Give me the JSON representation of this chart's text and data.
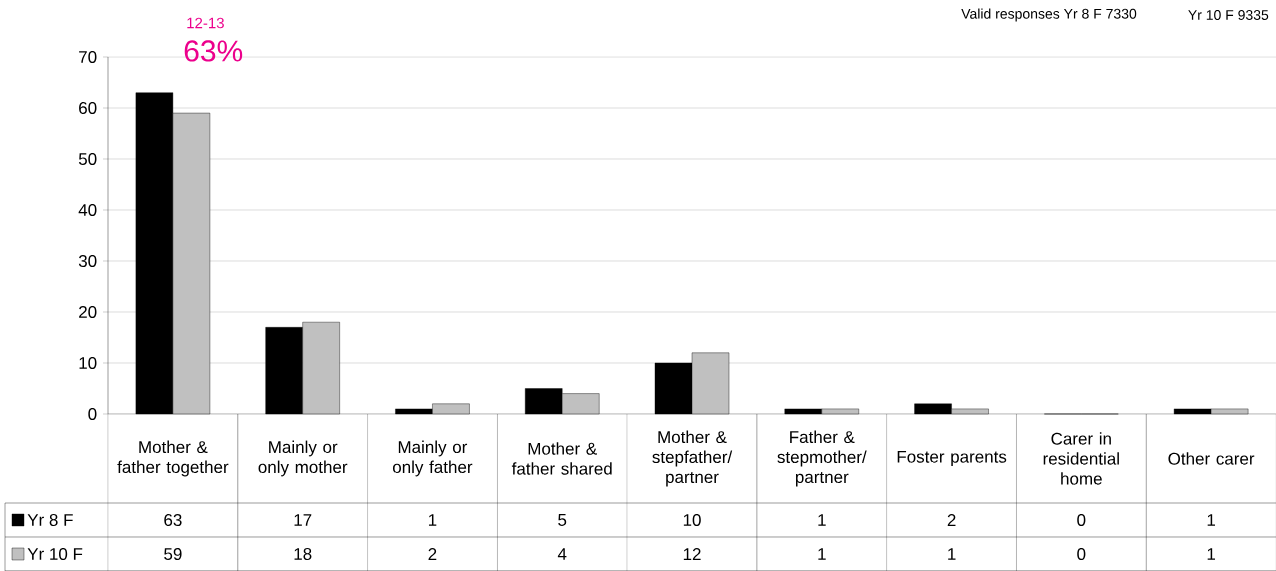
{
  "chart_data": {
    "type": "bar",
    "categories": [
      "Mother & father together",
      "Mainly or only mother",
      "Mainly or only father",
      "Mother & father shared",
      "Mother & stepfather/ partner",
      "Father & stepmother/ partner",
      "Foster parents",
      "Carer in residential home",
      "Other carer"
    ],
    "series": [
      {
        "name": "Yr 8 F",
        "color": "#000000",
        "values": [
          63,
          17,
          1,
          5,
          10,
          1,
          2,
          0,
          1
        ]
      },
      {
        "name": "Yr 10 F",
        "color": "#c0c0c0",
        "values": [
          59,
          18,
          2,
          4,
          12,
          1,
          1,
          0,
          1
        ]
      }
    ],
    "ylim": [
      0,
      70
    ],
    "yticks": [
      0,
      10,
      20,
      30,
      40,
      50,
      60,
      70
    ],
    "grid": "y",
    "data_labels": true,
    "legend": "bottom left",
    "annotations": [
      "Valid responses Yr 8 F 7330",
      "Yr 10 F 9335",
      "12-13",
      "63%"
    ]
  }
}
